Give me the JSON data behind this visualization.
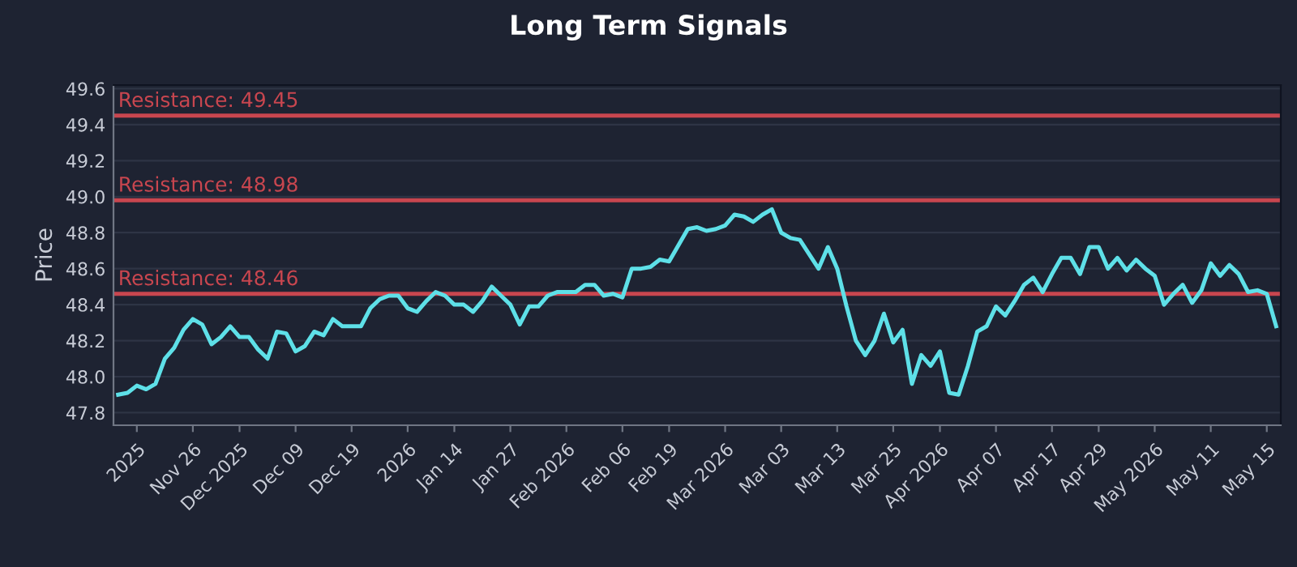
{
  "chart_data": {
    "type": "line",
    "title": "Long Term Signals",
    "ylabel": "Price",
    "categories": [
      null,
      null,
      "2025",
      null,
      null,
      null,
      null,
      null,
      "Nov 26",
      null,
      null,
      null,
      null,
      "Dec 2025",
      null,
      null,
      null,
      null,
      null,
      "Dec 09",
      null,
      null,
      null,
      null,
      null,
      "Dec 19",
      null,
      null,
      null,
      null,
      null,
      "2026",
      null,
      null,
      null,
      null,
      "Jan 14",
      null,
      null,
      null,
      null,
      null,
      "Jan 27",
      null,
      null,
      null,
      null,
      null,
      "Feb 2026",
      null,
      null,
      null,
      null,
      null,
      "Feb 06",
      null,
      null,
      null,
      null,
      "Feb 19",
      null,
      null,
      null,
      null,
      null,
      "Mar 2026",
      null,
      null,
      null,
      null,
      null,
      "Mar 03",
      null,
      null,
      null,
      null,
      null,
      "Mar 13",
      null,
      null,
      null,
      null,
      null,
      "Mar 25",
      null,
      null,
      null,
      null,
      "Apr 2026",
      null,
      null,
      null,
      null,
      null,
      "Apr 07",
      null,
      null,
      null,
      null,
      null,
      "Apr 17",
      null,
      null,
      null,
      null,
      "Apr 29",
      null,
      null,
      null,
      null,
      null,
      "May 2026",
      null,
      null,
      null,
      null,
      null,
      "May 11",
      null,
      null,
      null,
      null,
      null,
      "May 15",
      null
    ],
    "series": [
      {
        "color": "#5ee0e8",
        "values": [
          47.9,
          47.91,
          47.95,
          47.93,
          47.96,
          48.1,
          48.16,
          48.26,
          48.32,
          48.29,
          48.18,
          48.22,
          48.28,
          48.22,
          48.22,
          48.15,
          48.1,
          48.25,
          48.24,
          48.14,
          48.17,
          48.25,
          48.23,
          48.32,
          48.28,
          48.28,
          48.28,
          48.38,
          48.43,
          48.45,
          48.45,
          48.38,
          48.36,
          48.42,
          48.47,
          48.45,
          48.4,
          48.4,
          48.36,
          48.42,
          48.5,
          48.45,
          48.4,
          48.29,
          48.39,
          48.39,
          48.45,
          48.47,
          48.47,
          48.47,
          48.51,
          48.51,
          48.45,
          48.46,
          48.44,
          48.6,
          48.6,
          48.61,
          48.65,
          48.64,
          48.73,
          48.82,
          48.83,
          48.81,
          48.82,
          48.84,
          48.9,
          48.89,
          48.86,
          48.9,
          48.93,
          48.8,
          48.77,
          48.76,
          48.68,
          48.6,
          48.72,
          48.6,
          48.39,
          48.2,
          48.12,
          48.2,
          48.35,
          48.19,
          48.26,
          47.96,
          48.12,
          48.06,
          48.14,
          47.91,
          47.9,
          48.06,
          48.25,
          48.28,
          48.39,
          48.34,
          48.42,
          48.51,
          48.55,
          48.47,
          48.57,
          48.66,
          48.66,
          48.57,
          48.72,
          48.72,
          48.6,
          48.66,
          48.59,
          48.65,
          48.6,
          48.56,
          48.4,
          48.46,
          48.51,
          48.41,
          48.48,
          48.63,
          48.56,
          48.62,
          48.57,
          48.47,
          48.48,
          48.46,
          48.28
        ]
      }
    ],
    "ylim": [
      47.73,
      49.62
    ],
    "yticks": [
      {
        "value": 47.8,
        "label": "47.8"
      },
      {
        "value": 48.0,
        "label": "48.0"
      },
      {
        "value": 48.2,
        "label": "48.2"
      },
      {
        "value": 48.4,
        "label": "48.4"
      },
      {
        "value": 48.6,
        "label": "48.6"
      },
      {
        "value": 48.8,
        "label": "48.8"
      },
      {
        "value": 49.0,
        "label": "49.0"
      },
      {
        "value": 49.2,
        "label": "49.2"
      },
      {
        "value": 49.4,
        "label": "49.4"
      },
      {
        "value": 49.6,
        "label": "49.6"
      }
    ],
    "grid": "y",
    "line_style": "solid",
    "marker": "none",
    "ref_lines": [
      {
        "axis": "y",
        "value": 49.45,
        "label": "Resistance: 49.45",
        "color": "#c8464f"
      },
      {
        "axis": "y",
        "value": 48.98,
        "label": "Resistance: 48.98",
        "color": "#c8464f"
      },
      {
        "axis": "y",
        "value": 48.46,
        "label": "Resistance: 48.46",
        "color": "#c8464f"
      }
    ]
  }
}
